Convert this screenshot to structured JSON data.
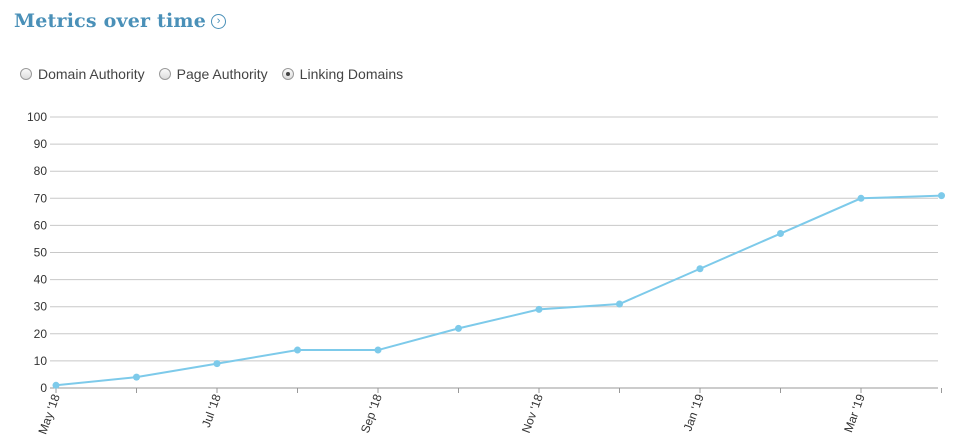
{
  "header": {
    "title": "Metrics over time",
    "icon": "chevron-right-circle-icon"
  },
  "radios": [
    {
      "label": "Domain Authority",
      "checked": false
    },
    {
      "label": "Page Authority",
      "checked": false
    },
    {
      "label": "Linking Domains",
      "checked": true
    }
  ],
  "chart_data": {
    "type": "line",
    "title": "",
    "xlabel": "",
    "ylabel": "",
    "ylim": [
      0,
      100
    ],
    "y_ticks": [
      0,
      10,
      20,
      30,
      40,
      50,
      60,
      70,
      80,
      90,
      100
    ],
    "x_tick_labels": [
      "May '18",
      "Jul '18",
      "Sep '18",
      "Nov '18",
      "Jan '19",
      "Mar '19"
    ],
    "x": [
      "May '18",
      "Jun '18",
      "Jul '18",
      "Aug '18",
      "Sep '18",
      "Oct '18",
      "Nov '18",
      "Dec '18",
      "Jan '19",
      "Feb '19",
      "Mar '19",
      "Apr '19"
    ],
    "series": [
      {
        "values": [
          1,
          4,
          9,
          14,
          14,
          22,
          29,
          31,
          44,
          57,
          70,
          71
        ]
      }
    ],
    "grid": true,
    "line_color": "#7dcaea"
  }
}
